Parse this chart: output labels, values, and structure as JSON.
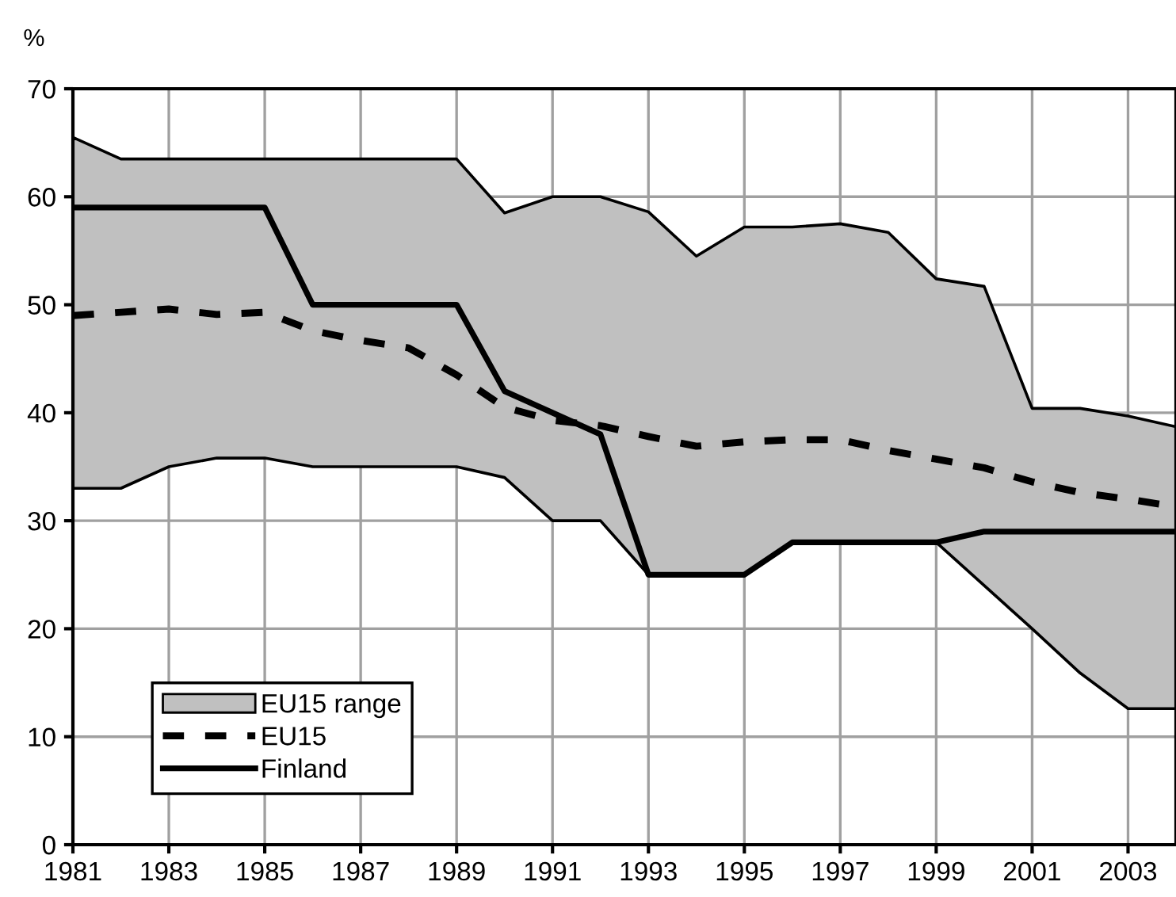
{
  "chart_data": {
    "type": "line",
    "ylabel": "%",
    "x": [
      1981,
      1982,
      1983,
      1984,
      1985,
      1986,
      1987,
      1988,
      1989,
      1990,
      1991,
      1992,
      1993,
      1994,
      1995,
      1996,
      1997,
      1998,
      1999,
      2000,
      2001,
      2002,
      2003,
      2004
    ],
    "series": [
      {
        "name": "EU15 range",
        "type": "area",
        "color": "#c0c0c0",
        "values": [
          null,
          null,
          null,
          null,
          null,
          null,
          null,
          null,
          null,
          null,
          null,
          null,
          null,
          null,
          null,
          null,
          null,
          null,
          null,
          null,
          null,
          null,
          null,
          null
        ],
        "lower": [
          33,
          33,
          35,
          35.8,
          35.8,
          35,
          35,
          35,
          35,
          34,
          30,
          30,
          25,
          25,
          25,
          28,
          28,
          28,
          28,
          24,
          20,
          15.9,
          12.6,
          12.6
        ],
        "upper": [
          65.5,
          63.5,
          63.5,
          63.5,
          63.5,
          63.5,
          63.5,
          63.5,
          63.5,
          58.5,
          60,
          60,
          58.6,
          54.5,
          57.2,
          57.2,
          57.5,
          56.7,
          52.4,
          51.7,
          40.4,
          40.4,
          39.7,
          38.7
        ]
      },
      {
        "name": "EU15",
        "color": "#000000",
        "line_style": "dashed",
        "values": [
          49,
          49.3,
          49.6,
          49.1,
          49.3,
          47.6,
          46.7,
          46,
          43.5,
          40.5,
          39.3,
          38.8,
          37.8,
          36.9,
          37.3,
          37.5,
          37.5,
          36.5,
          35.7,
          34.9,
          33.6,
          32.6,
          32,
          31.3
        ]
      },
      {
        "name": "Finland",
        "color": "#000000",
        "line_style": "solid",
        "values": [
          59,
          59,
          59,
          59,
          59,
          50,
          50,
          50,
          50,
          42,
          40,
          38,
          25,
          25,
          25,
          28,
          28,
          28,
          28,
          29,
          29,
          29,
          29,
          29
        ]
      }
    ],
    "xlim": [
      1981,
      2004
    ],
    "xticks": [
      1981,
      1983,
      1985,
      1987,
      1989,
      1991,
      1993,
      1995,
      1997,
      1999,
      2001,
      2003
    ],
    "ylim": [
      0,
      70
    ],
    "yticks": [
      0,
      10,
      20,
      30,
      40,
      50,
      60,
      70
    ],
    "grid": true,
    "legend": "bottom left",
    "marker": "none"
  }
}
